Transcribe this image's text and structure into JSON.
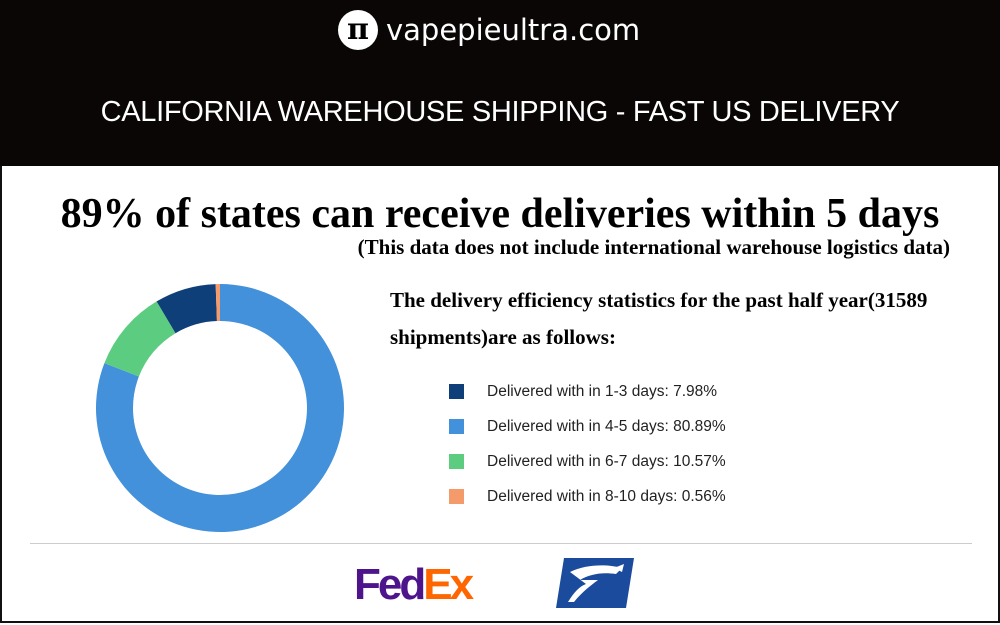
{
  "header": {
    "site": "vapepieultra.com",
    "logo_glyph": "π",
    "banner": "CALIFORNIA WAREHOUSE SHIPPING - FAST US DELIVERY"
  },
  "headline": "89% of states can receive deliveries within 5 days",
  "subheadline": "(This data does not include international warehouse logistics data)",
  "stats_text": "The delivery efficiency statistics for the past half year(31589 shipments)are as follows:",
  "chart_data": {
    "type": "pie",
    "donut": true,
    "start": "top",
    "direction": "clockwise",
    "slices": [
      {
        "label": "Delivered with in 4-5 days: 80.89%",
        "value": 80.89,
        "color": "#4390db"
      },
      {
        "label": "Delivered with in 6-7 days: 10.57%",
        "value": 10.57,
        "color": "#5ccd80"
      },
      {
        "label": "Delivered with in 1-3 days: 7.98%",
        "value": 7.98,
        "color": "#0f3f79"
      },
      {
        "label": "Delivered with in 8-10 days: 0.56%",
        "value": 0.56,
        "color": "#f59a6b"
      }
    ],
    "legend": [
      {
        "label": "Delivered with in 1-3 days: 7.98%",
        "color": "#0f3f79"
      },
      {
        "label": "Delivered with in 4-5 days: 80.89%",
        "color": "#4390db"
      },
      {
        "label": "Delivered with in 6-7 days: 10.57%",
        "color": "#5ccd80"
      },
      {
        "label": "Delivered with in 8-10 days: 0.56%",
        "color": "#f59a6b"
      }
    ],
    "legend_position": "right"
  },
  "carriers": {
    "fedex": {
      "fed": "Fed",
      "ex": "Ex",
      "fed_color": "#4d148c",
      "ex_color": "#ff6600"
    },
    "usps": "usps-eagle-logo"
  }
}
